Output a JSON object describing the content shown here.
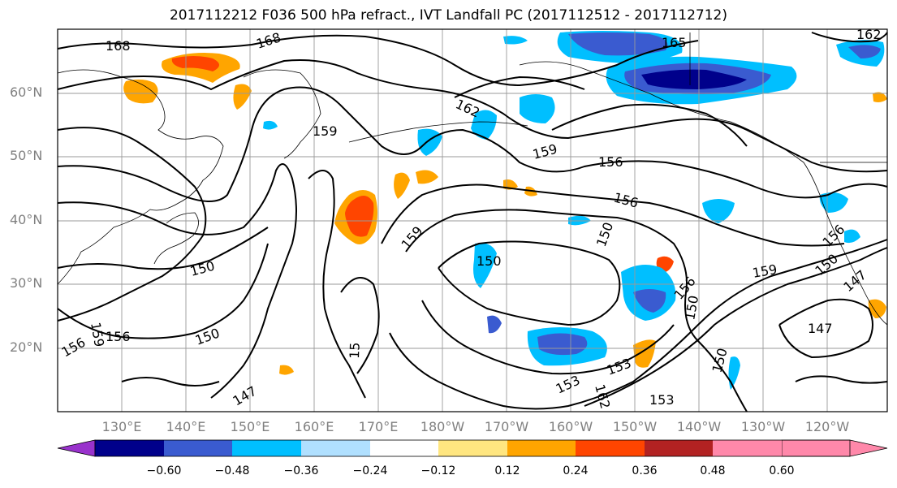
{
  "title": "2017112212 F036 500 hPa refract., IVT Landfall PC (2017112512 - 2017112712)",
  "lat_labels": [
    "60°N",
    "50°N",
    "40°N",
    "30°N",
    "20°N"
  ],
  "lon_labels": [
    "130°E",
    "140°E",
    "150°E",
    "160°E",
    "170°E",
    "180°W",
    "170°W",
    "160°W",
    "150°W",
    "140°W",
    "130°W",
    "120°W"
  ],
  "contour_labels": [
    "168",
    "168",
    "165",
    "162",
    "162",
    "159",
    "159",
    "156",
    "156",
    "150",
    "150",
    "159",
    "156",
    "150",
    "150",
    "156",
    "159",
    "156",
    "150",
    "150",
    "147",
    "159",
    "156",
    "147",
    "153",
    "162",
    "153",
    "153",
    "150",
    "147",
    "15"
  ],
  "colorbar": {
    "tick_labels": [
      "−0.60",
      "−0.48",
      "−0.36",
      "−0.24",
      "−0.12",
      "0.12",
      "0.24",
      "0.36",
      "0.48",
      "0.60"
    ],
    "colors": [
      "#9932cc",
      "#00008b",
      "#3a5bd0",
      "#00bfff",
      "#b0e0ff",
      "#ffffff",
      "#ffe680",
      "#ffa500",
      "#ff4500",
      "#b22222",
      "#ff88aa"
    ]
  }
}
